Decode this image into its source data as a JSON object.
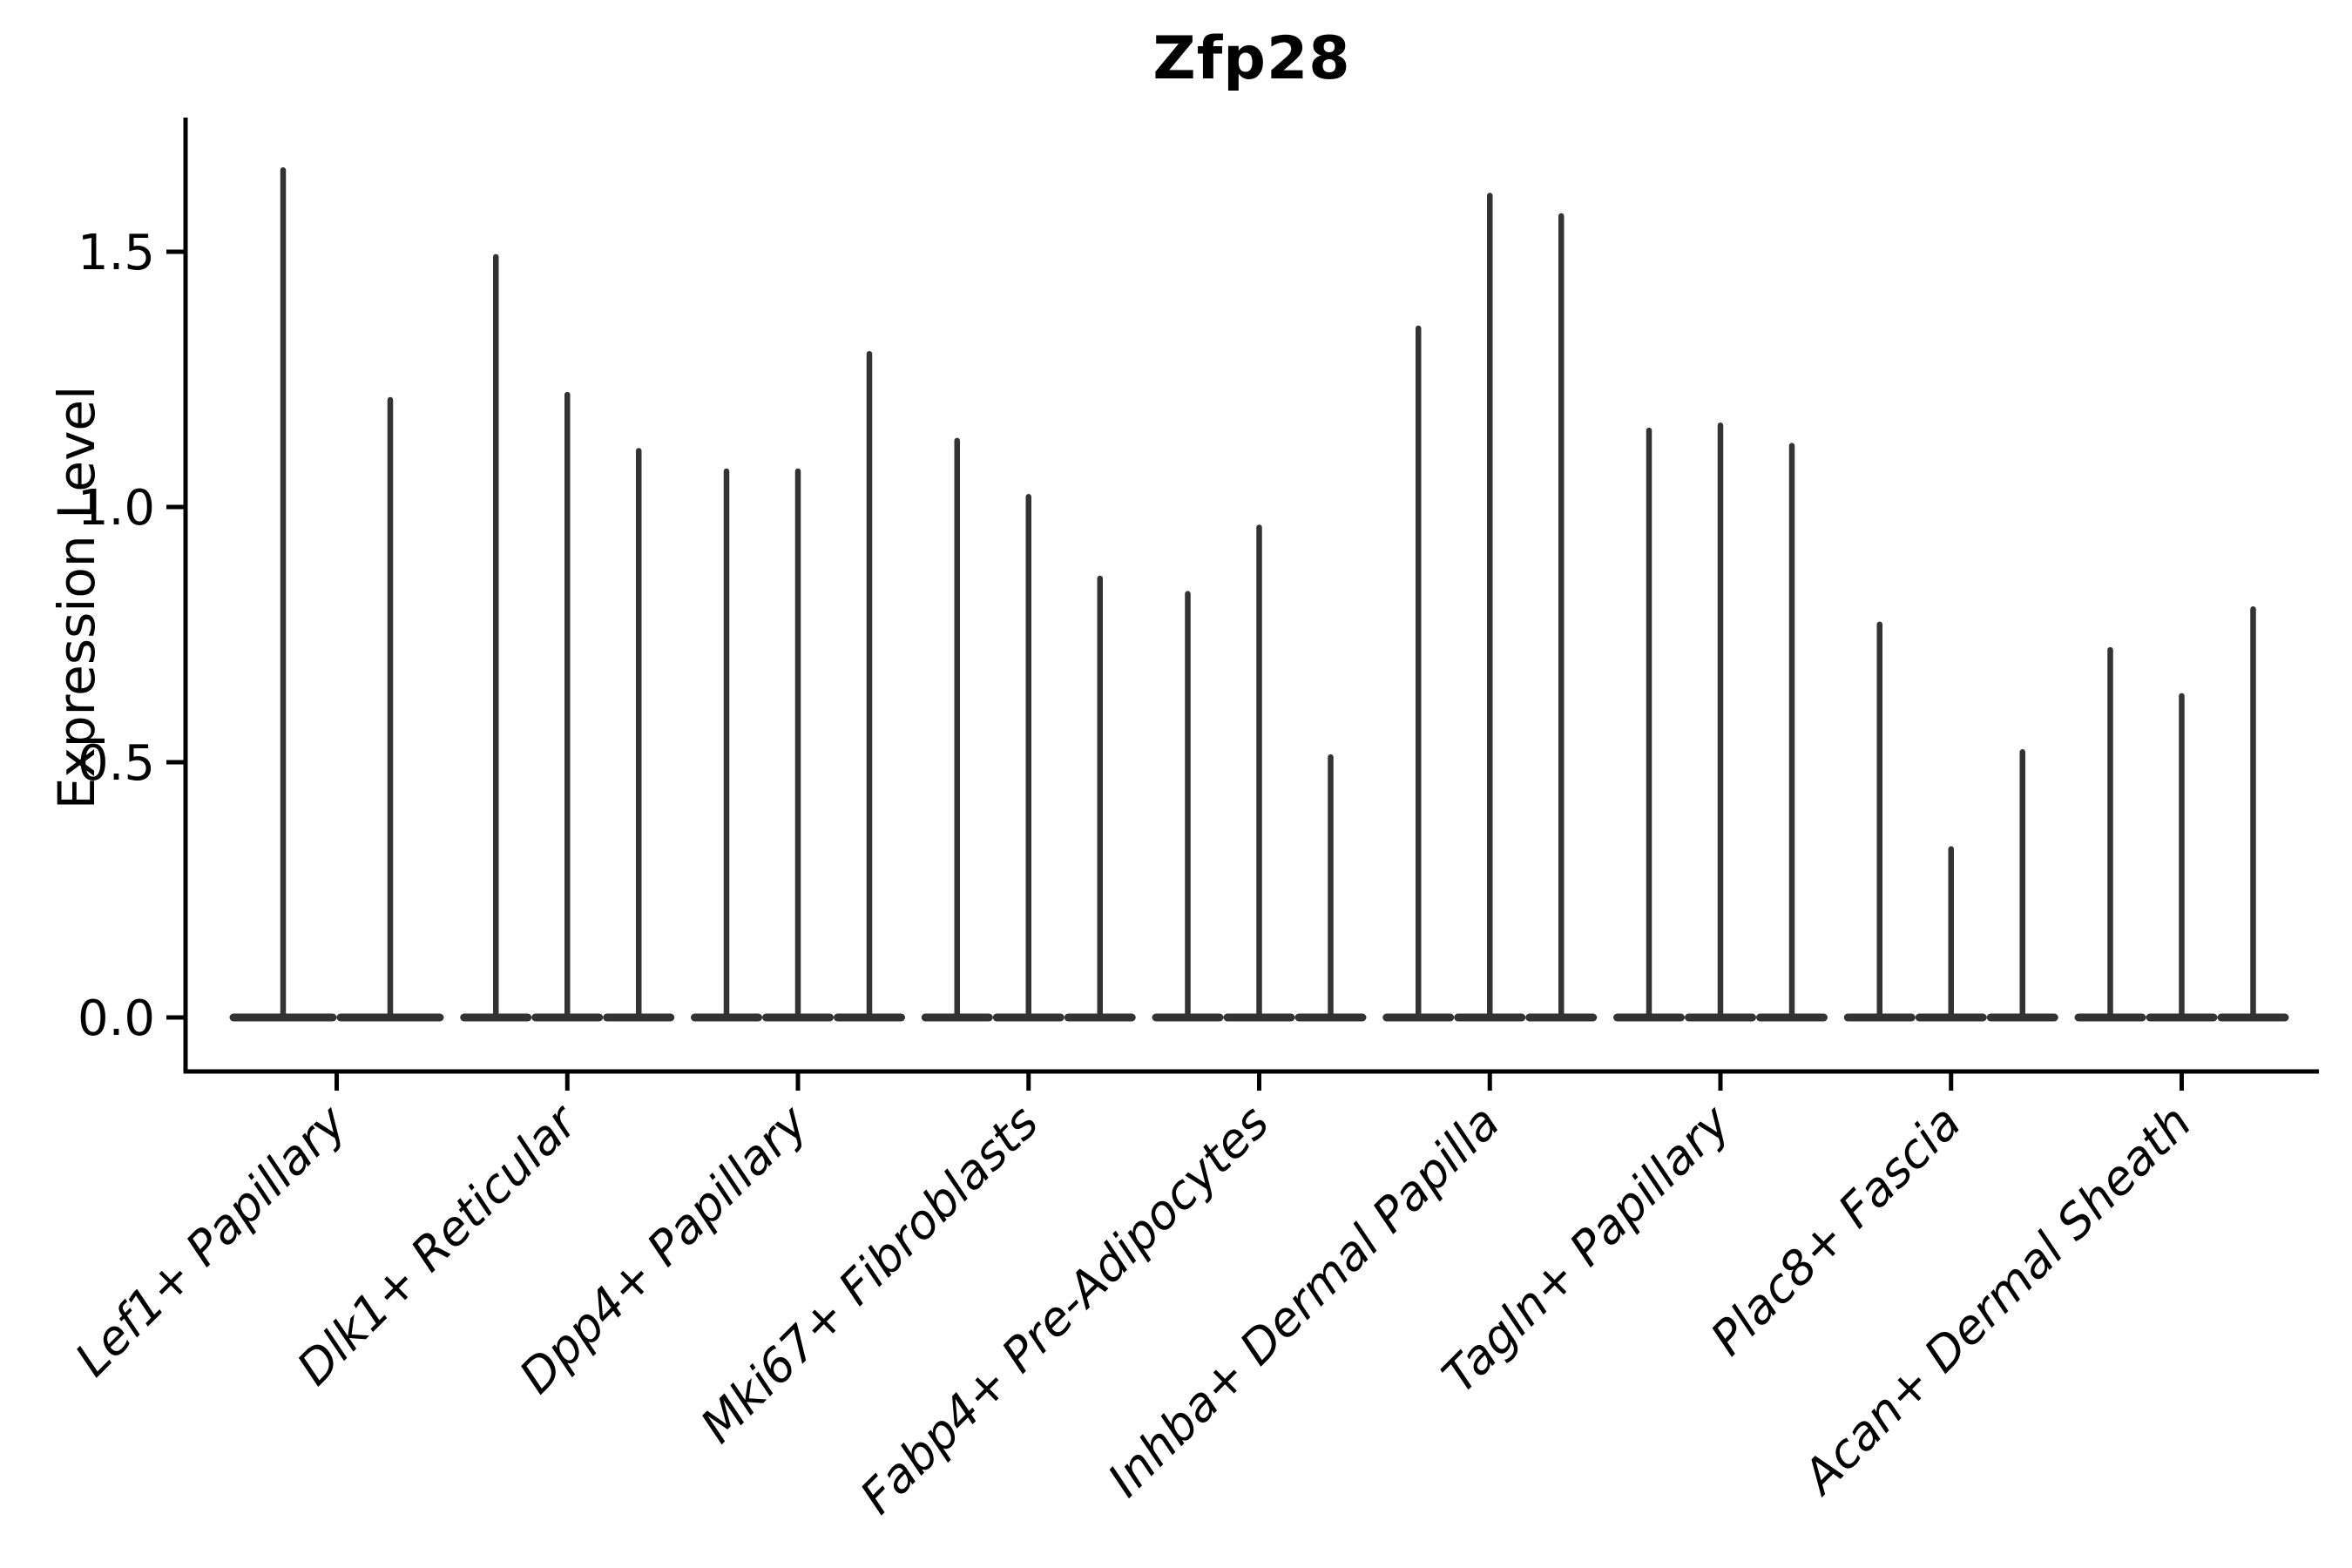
{
  "figure": {
    "background": "#ffffff"
  },
  "chart_data": {
    "type": "violin",
    "title": "Zfp28",
    "ylabel": "Expression Level",
    "xlabel": "",
    "grid": false,
    "legend_position": "none",
    "ylim": [
      0,
      1.76
    ],
    "ytick_labels": [
      "0.0",
      "0.5",
      "1.0",
      "1.5"
    ],
    "ytick_values": [
      0.0,
      0.5,
      1.0,
      1.5
    ],
    "categories": [
      "Lef1+ Papillary",
      "Dlk1+ Reticular",
      "Dpp4+ Papillary",
      "Mki67+ Fibroblasts",
      "Fabp4+ Pre-Adipocytes",
      "Inhba+ Dermal Papilla",
      "Tagln+ Papillary",
      "Plac8+ Fascia",
      "Acan+ Dermal Sheath"
    ],
    "groups": [
      {
        "category": "Lef1+ Papillary",
        "violin_max_values": [
          1.66,
          1.21
        ]
      },
      {
        "category": "Dlk1+ Reticular",
        "violin_max_values": [
          1.49,
          1.22,
          1.11
        ]
      },
      {
        "category": "Dpp4+ Papillary",
        "violin_max_values": [
          1.07,
          1.07,
          1.3
        ]
      },
      {
        "category": "Mki67+ Fibroblasts",
        "violin_max_values": [
          1.13,
          1.02,
          0.86
        ]
      },
      {
        "category": "Fabp4+ Pre-Adipocytes",
        "violin_max_values": [
          0.83,
          0.96,
          0.51
        ]
      },
      {
        "category": "Inhba+ Dermal Papilla",
        "violin_max_values": [
          1.35,
          1.61,
          1.57
        ]
      },
      {
        "category": "Tagln+ Papillary",
        "violin_max_values": [
          1.15,
          1.16,
          1.12
        ]
      },
      {
        "category": "Plac8+ Fascia",
        "violin_max_values": [
          0.77,
          0.33,
          0.52
        ]
      },
      {
        "category": "Acan+ Dermal Sheath",
        "violin_max_values": [
          0.72,
          0.63,
          0.8
        ]
      }
    ],
    "violin_baseline_value": 0.0,
    "colors": {
      "violin": "#333333",
      "axis": "#000000",
      "text": "#000000"
    }
  }
}
